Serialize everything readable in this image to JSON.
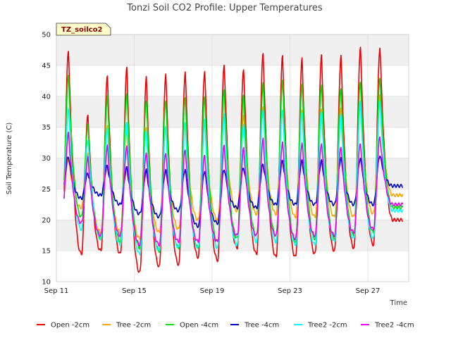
{
  "chart_data": {
    "type": "line",
    "title": "Tonzi Soil CO2 Profile: Upper Temperatures",
    "xlabel": "Time",
    "ylabel": "Soil Temperature (C)",
    "tag": "TZ_soilco2",
    "ylim": [
      10,
      50
    ],
    "yticks": [
      10,
      15,
      20,
      25,
      30,
      35,
      40,
      45,
      50
    ],
    "xlim": [
      0,
      18.1
    ],
    "xtick_positions": [
      0,
      4,
      8,
      12,
      16
    ],
    "xtick_labels": [
      "Sep 11",
      "Sep 15",
      "Sep 19",
      "Sep 23",
      "Sep 27"
    ],
    "x_start": 0.4,
    "x_end": 17.8,
    "grid": true,
    "legend_position": "bottom",
    "series": [
      {
        "name": "Open -2cm",
        "color": "#ee0000",
        "daily_min": [
          17.0,
          14.5,
          15.0,
          14.5,
          11.5,
          12.5,
          12.8,
          14.0,
          13.5,
          15.5,
          14.5,
          14.0,
          14.0,
          14.5,
          15.0,
          15.5,
          16.0,
          20.0
        ],
        "daily_max": [
          47.5,
          37.0,
          43.2,
          44.5,
          43.0,
          43.5,
          44.0,
          44.2,
          45.3,
          44.5,
          47.0,
          46.5,
          46.0,
          46.5,
          46.5,
          48.0,
          48.0,
          20.0
        ]
      },
      {
        "name": "Tree -2cm",
        "color": "#ffa500",
        "daily_min": [
          22.0,
          22.0,
          18.0,
          18.0,
          17.0,
          18.0,
          18.5,
          20.0,
          20.0,
          21.5,
          21.0,
          21.0,
          20.5,
          20.5,
          20.5,
          20.5,
          21.0,
          24.0
        ],
        "daily_max": [
          30.0,
          31.0,
          35.5,
          34.5,
          35.0,
          35.0,
          35.5,
          36.0,
          37.0,
          37.0,
          38.5,
          38.0,
          38.0,
          38.0,
          38.0,
          38.5,
          40.0,
          24.0
        ]
      },
      {
        "name": "Open -4cm",
        "color": "#00dd00",
        "daily_min": [
          21.0,
          20.5,
          17.0,
          16.5,
          15.5,
          15.0,
          15.5,
          15.5,
          16.5,
          17.0,
          17.5,
          17.5,
          16.5,
          17.0,
          17.0,
          17.5,
          18.0,
          22.0
        ],
        "daily_max": [
          43.2,
          35.2,
          40.0,
          40.5,
          39.5,
          39.5,
          40.0,
          40.0,
          41.0,
          40.0,
          42.0,
          42.5,
          42.0,
          42.0,
          41.5,
          42.5,
          43.0,
          22.0
        ]
      },
      {
        "name": "Tree -4cm",
        "color": "#0000cc",
        "daily_min": [
          24.0,
          23.5,
          24.0,
          22.5,
          21.0,
          20.5,
          21.5,
          19.0,
          19.5,
          22.0,
          22.0,
          22.5,
          22.5,
          22.5,
          22.5,
          22.5,
          22.5,
          25.5
        ],
        "daily_max": [
          30.3,
          27.5,
          28.7,
          28.4,
          28.0,
          28.0,
          28.2,
          28.0,
          28.3,
          28.5,
          29.0,
          29.5,
          29.5,
          29.5,
          30.0,
          30.0,
          30.5,
          25.5
        ]
      },
      {
        "name": "Tree2 -2cm",
        "color": "#00ffff",
        "daily_min": [
          19.0,
          18.5,
          17.0,
          16.0,
          14.5,
          15.0,
          15.5,
          15.5,
          15.5,
          16.0,
          16.5,
          16.5,
          16.0,
          16.0,
          16.5,
          17.0,
          17.0,
          21.5
        ],
        "daily_max": [
          38.0,
          33.0,
          35.0,
          36.0,
          34.5,
          35.0,
          35.5,
          36.0,
          37.0,
          35.5,
          38.0,
          38.0,
          37.5,
          37.5,
          37.0,
          39.0,
          39.0,
          21.5
        ]
      },
      {
        "name": "Tree2 -4cm",
        "color": "#ee00ee",
        "daily_min": [
          20.0,
          19.5,
          17.5,
          17.5,
          16.0,
          16.0,
          16.5,
          16.5,
          16.5,
          17.5,
          17.5,
          17.5,
          17.0,
          17.5,
          17.5,
          18.0,
          18.5,
          22.5
        ],
        "daily_max": [
          34.0,
          30.0,
          32.0,
          32.0,
          31.0,
          31.0,
          31.5,
          30.5,
          32.0,
          31.5,
          33.0,
          32.5,
          32.5,
          32.5,
          32.0,
          32.5,
          33.5,
          22.5
        ]
      }
    ]
  }
}
